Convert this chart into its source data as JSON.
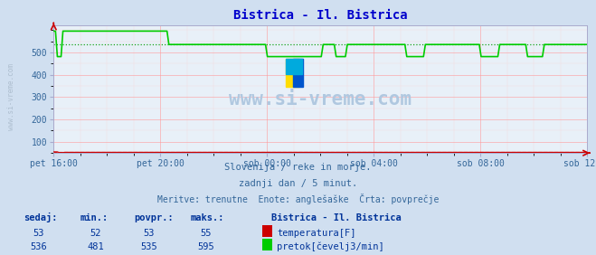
{
  "title": "Bistrica - Il. Bistrica",
  "title_color": "#0000cc",
  "bg_color": "#d0dff0",
  "plot_bg_color": "#e8f0f8",
  "grid_color_major": "#ff9999",
  "grid_color_minor": "#ffcccc",
  "tick_label_color": "#336699",
  "watermark_text": "www.si-vreme.com",
  "watermark_color": "#b0c8e0",
  "sub_text1": "Slovenija / reke in morje.",
  "sub_text2": "zadnji dan / 5 minut.",
  "sub_text3": "Meritve: trenutne  Enote: anglešaške  Črta: povprečje",
  "sub_text_color": "#336699",
  "xlabel_ticks": [
    "pet 16:00",
    "pet 20:00",
    "sob 00:00",
    "sob 04:00",
    "sob 08:00",
    "sob 12:00"
  ],
  "xlabel_tick_positions": [
    0,
    4,
    8,
    12,
    16,
    20
  ],
  "ylim": [
    50,
    620
  ],
  "yticks": [
    100,
    200,
    300,
    400,
    500
  ],
  "legend_station": "Bistrica - Il. Bistrica",
  "legend_label1": "temperatura[F]",
  "legend_label2": "pretok[čevelj3/min]",
  "legend_color1": "#cc0000",
  "legend_color2": "#00cc00",
  "table_headers": [
    "sedaj:",
    "min.:",
    "povpr.:",
    "maks.:"
  ],
  "table_values_temp": [
    53,
    52,
    53,
    55
  ],
  "table_values_flow": [
    536,
    481,
    535,
    595
  ],
  "table_color": "#003399",
  "avg_temp": 53,
  "avg_flow": 535,
  "temp_color": "#cc0000",
  "flow_color": "#00cc00",
  "avg_line_color_temp": "#cc0000",
  "avg_line_color_flow": "#009900",
  "axis_color": "#aaaacc",
  "arrow_color": "#cc0000",
  "left_label": "www.si-vreme.com",
  "left_label_color": "#aabbcc"
}
